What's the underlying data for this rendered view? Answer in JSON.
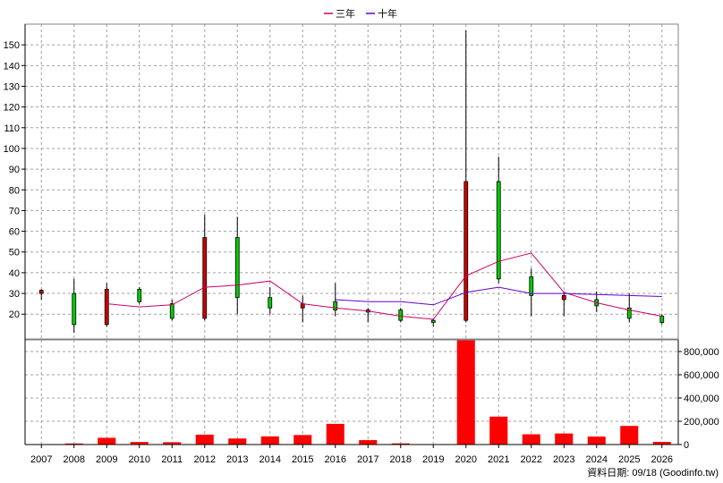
{
  "chart_data": {
    "type": "candlestick",
    "legend": [
      {
        "name": "三年",
        "color": "#cc0066"
      },
      {
        "name": "十年",
        "color": "#6600cc"
      }
    ],
    "categories": [
      "2007",
      "2008",
      "2009",
      "2010",
      "2011",
      "2012",
      "2013",
      "2014",
      "2015",
      "2016",
      "2017",
      "2018",
      "2019",
      "2020",
      "2021",
      "2022",
      "2023",
      "2024",
      "2025",
      "2026"
    ],
    "price_axis": {
      "ticks": [
        20,
        30,
        40,
        50,
        60,
        70,
        80,
        90,
        100,
        110,
        120,
        130,
        140,
        150
      ],
      "ylim": [
        8,
        160
      ]
    },
    "volume_axis": {
      "ticks": [
        0,
        200000,
        400000,
        600000,
        800000
      ],
      "tick_labels": [
        "0",
        "200,000",
        "400,000",
        "600,000",
        "800,000"
      ],
      "ylim": [
        0,
        900000
      ]
    },
    "candles": [
      {
        "year": "2007",
        "open": 30,
        "close": 31.5,
        "high": 32,
        "low": 27
      },
      {
        "year": "2008",
        "open": 30,
        "close": 15,
        "high": 37,
        "low": 11
      },
      {
        "year": "2009",
        "open": 15,
        "close": 32,
        "high": 35,
        "low": 14
      },
      {
        "year": "2010",
        "open": 32,
        "close": 26,
        "high": 33,
        "low": 25
      },
      {
        "year": "2011",
        "open": 25,
        "close": 18,
        "high": 27,
        "low": 17
      },
      {
        "year": "2012",
        "open": 18,
        "close": 57,
        "high": 68,
        "low": 17
      },
      {
        "year": "2013",
        "open": 57,
        "close": 28,
        "high": 67,
        "low": 20
      },
      {
        "year": "2014",
        "open": 28,
        "close": 23,
        "high": 33,
        "low": 20
      },
      {
        "year": "2015",
        "open": 23,
        "close": 25,
        "high": 29,
        "low": 16
      },
      {
        "year": "2016",
        "open": 26,
        "close": 22,
        "high": 35,
        "low": 19
      },
      {
        "year": "2017",
        "open": 22,
        "close": 21,
        "high": 23,
        "low": 16
      },
      {
        "year": "2018",
        "open": 22,
        "close": 17,
        "high": 23,
        "low": 16
      },
      {
        "year": "2019",
        "open": 17,
        "close": 16,
        "high": 18,
        "low": 14
      },
      {
        "year": "2020",
        "open": 17,
        "close": 84,
        "high": 157,
        "low": 16
      },
      {
        "year": "2021",
        "open": 84,
        "close": 37,
        "high": 96,
        "low": 35
      },
      {
        "year": "2022",
        "open": 38,
        "close": 29,
        "high": 42,
        "low": 19
      },
      {
        "year": "2023",
        "open": 27,
        "close": 29,
        "high": 31,
        "low": 19
      },
      {
        "year": "2024",
        "open": 27,
        "close": 24,
        "high": 31,
        "low": 21
      },
      {
        "year": "2025",
        "open": 23,
        "close": 18,
        "high": 30,
        "low": 16
      },
      {
        "year": "2026",
        "open": 19,
        "close": 16,
        "high": 20,
        "low": 15
      }
    ],
    "series": [
      {
        "name": "三年",
        "color": "#cc0066",
        "values": [
          null,
          null,
          25,
          23.5,
          24.5,
          33,
          34,
          36,
          25,
          23,
          21.5,
          19,
          17.5,
          38.5,
          45.5,
          49.5,
          30.5,
          25.5,
          22,
          19
        ]
      },
      {
        "name": "十年",
        "color": "#6600cc",
        "values": [
          null,
          null,
          null,
          null,
          null,
          null,
          null,
          null,
          null,
          27,
          26,
          26,
          24.5,
          30.5,
          33,
          30,
          30,
          29.5,
          29,
          28.5
        ]
      }
    ],
    "volume": [
      1000,
      9000,
      58000,
      22000,
      20000,
      85000,
      52000,
      70000,
      82000,
      178000,
      38000,
      10000,
      3000,
      905000,
      240000,
      88000,
      95000,
      68000,
      160000,
      23000
    ],
    "grid": true,
    "legend_position": "top-center",
    "footer": "資料日期: 09/18  (Goodinfo.tw)"
  }
}
